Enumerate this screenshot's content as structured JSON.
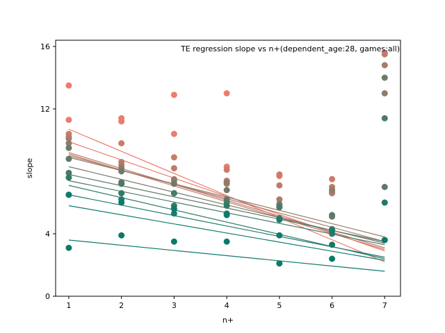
{
  "chart_data": {
    "type": "scatter",
    "title": "TE regression slope vs n+(dependent_age:28, games:all)",
    "xlabel": "n+",
    "ylabel": "slope",
    "xlim": [
      0.75,
      7.3
    ],
    "ylim": [
      0,
      16.4
    ],
    "x_ticks": [
      1,
      2,
      3,
      4,
      5,
      6,
      7
    ],
    "y_ticks": [
      0,
      4,
      12,
      16
    ],
    "grid": false,
    "series": [
      {
        "color": "#ef7b6d",
        "points": [
          [
            1,
            13.5
          ],
          [
            2,
            11.2
          ],
          [
            3,
            12.9
          ],
          [
            4,
            13.0
          ],
          [
            7,
            15.6
          ]
        ],
        "fit": [
          [
            1,
            10.7
          ],
          [
            7,
            2.2
          ]
        ]
      },
      {
        "color": "#e97d6e",
        "points": [
          [
            1,
            11.3
          ],
          [
            2,
            11.4
          ],
          [
            3,
            10.4
          ],
          [
            4,
            8.3
          ],
          [
            5,
            7.7
          ],
          [
            6,
            6.7
          ]
        ],
        "fit": [
          [
            1,
            9.9
          ],
          [
            7,
            2.9
          ]
        ]
      },
      {
        "color": "#cb7b68",
        "points": [
          [
            1,
            10.4
          ],
          [
            2,
            9.8
          ],
          [
            3,
            8.9
          ],
          [
            4,
            8.1
          ],
          [
            5,
            7.8
          ],
          [
            6,
            7.5
          ]
        ],
        "fit": [
          [
            1,
            9.1
          ],
          [
            7,
            3.0
          ]
        ]
      },
      {
        "color": "#be7b6a",
        "points": [
          [
            1,
            10.2
          ],
          [
            2,
            8.6
          ],
          [
            3,
            8.2
          ],
          [
            4,
            7.4
          ],
          [
            5,
            7.1
          ],
          [
            6,
            7.0
          ],
          [
            7,
            15.5
          ]
        ],
        "fit": [
          [
            1,
            9.2
          ],
          [
            7,
            3.1
          ]
        ]
      },
      {
        "color": "#a97c6b",
        "points": [
          [
            1,
            10.1
          ],
          [
            2,
            8.4
          ],
          [
            3,
            7.5
          ],
          [
            4,
            7.2
          ],
          [
            5,
            6.2
          ],
          [
            6,
            6.6
          ],
          [
            7,
            14.8
          ]
        ],
        "fit": [
          [
            1,
            9.0
          ],
          [
            7,
            3.5
          ]
        ]
      },
      {
        "color": "#8e7b6a",
        "points": [
          [
            1,
            9.8
          ],
          [
            2,
            8.2
          ],
          [
            3,
            7.4
          ],
          [
            4,
            7.3
          ],
          [
            5,
            5.8
          ],
          [
            6,
            6.8
          ],
          [
            7,
            13.0
          ]
        ],
        "fit": [
          [
            1,
            8.9
          ],
          [
            7,
            3.8
          ]
        ]
      },
      {
        "color": "#6f7a68",
        "points": [
          [
            1,
            9.5
          ],
          [
            2,
            8.0
          ],
          [
            3,
            7.2
          ],
          [
            4,
            6.8
          ],
          [
            5,
            5.9
          ],
          [
            6,
            5.1
          ],
          [
            7,
            14.0
          ]
        ],
        "fit": [
          [
            1,
            8.3
          ],
          [
            7,
            3.4
          ]
        ]
      },
      {
        "color": "#5d7a68",
        "points": [
          [
            1,
            8.8
          ],
          [
            2,
            7.3
          ],
          [
            3,
            6.6
          ],
          [
            4,
            6.2
          ],
          [
            5,
            5.7
          ],
          [
            6,
            5.2
          ],
          [
            7,
            7.0
          ]
        ],
        "fit": [
          [
            1,
            7.8
          ],
          [
            7,
            3.5
          ]
        ]
      },
      {
        "color": "#4a7a68",
        "points": [
          [
            1,
            7.9
          ],
          [
            2,
            7.2
          ],
          [
            3,
            6.6
          ],
          [
            4,
            6.0
          ],
          [
            5,
            5.7
          ],
          [
            6,
            4.3
          ],
          [
            7,
            11.4
          ]
        ],
        "fit": [
          [
            1,
            7.4
          ],
          [
            7,
            3.3
          ]
        ]
      },
      {
        "color": "#307a69",
        "points": [
          [
            1,
            7.6
          ],
          [
            2,
            6.6
          ],
          [
            3,
            5.8
          ],
          [
            4,
            5.8
          ],
          [
            5,
            5.0
          ],
          [
            6,
            4.0
          ],
          [
            7,
            3.6
          ]
        ],
        "fit": [
          [
            1,
            7.1
          ],
          [
            7,
            2.4
          ]
        ]
      },
      {
        "color": "#1c7b6b",
        "points": [
          [
            1,
            6.5
          ],
          [
            2,
            6.2
          ],
          [
            3,
            5.3
          ],
          [
            4,
            5.3
          ],
          [
            5,
            4.9
          ],
          [
            6,
            4.2
          ],
          [
            7,
            6.0
          ]
        ],
        "fit": [
          [
            1,
            6.5
          ],
          [
            7,
            2.5
          ]
        ]
      },
      {
        "color": "#0d7a6b",
        "points": [
          [
            1,
            6.5
          ],
          [
            2,
            6.0
          ],
          [
            3,
            5.6
          ],
          [
            4,
            5.2
          ],
          [
            5,
            3.9
          ],
          [
            6,
            3.3
          ],
          [
            7,
            3.6
          ]
        ],
        "fit": [
          [
            1,
            5.8
          ],
          [
            7,
            2.3
          ]
        ]
      },
      {
        "color": "#0a7a6a",
        "points": [
          [
            1,
            3.1
          ],
          [
            2,
            3.9
          ],
          [
            3,
            3.5
          ],
          [
            4,
            3.5
          ],
          [
            5,
            2.1
          ],
          [
            6,
            2.4
          ]
        ],
        "fit": [
          [
            1,
            3.6
          ],
          [
            7,
            1.6
          ]
        ]
      }
    ]
  }
}
